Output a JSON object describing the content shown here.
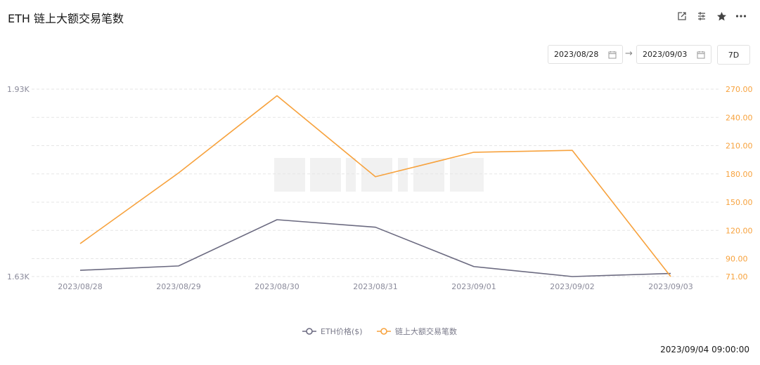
{
  "header": {
    "title": "ETH 链上大额交易笔数",
    "tools": [
      {
        "name": "share-icon"
      },
      {
        "name": "settings-icon"
      },
      {
        "name": "star-icon"
      },
      {
        "name": "more-icon"
      }
    ]
  },
  "controls": {
    "start_date": "2023/08/28",
    "end_date": "2023/09/03",
    "range": "7D"
  },
  "footer": {
    "timestamp": "2023/09/04 09:00:00"
  },
  "colors": {
    "series1": "#6b6a80",
    "series2": "#f7a23d",
    "grid": "#e6e6e6",
    "axis_left": "#8a8a9a",
    "axis_right": "#f7a23d"
  },
  "chart_data": {
    "type": "line",
    "x": [
      "2023/08/28",
      "2023/08/29",
      "2023/08/30",
      "2023/08/31",
      "2023/09/01",
      "2023/09/02",
      "2023/09/03"
    ],
    "y_left": {
      "ticks": [
        "1.63K",
        "1.93K"
      ],
      "min": 1630,
      "max": 1930
    },
    "y_right": {
      "ticks": [
        "71.00",
        "90.00",
        "120.00",
        "150.00",
        "180.00",
        "210.00",
        "240.00",
        "270.00"
      ],
      "min": 71,
      "max": 270
    },
    "series": [
      {
        "name": "ETH价格($)",
        "axis": "left",
        "values": [
          1640,
          1647,
          1721,
          1709,
          1646,
          1630,
          1635
        ]
      },
      {
        "name": "链上大额交易笔数",
        "axis": "right",
        "values": [
          106,
          181,
          263,
          177,
          203,
          205,
          71
        ]
      }
    ],
    "legend_position": "bottom-center",
    "grid": true
  }
}
